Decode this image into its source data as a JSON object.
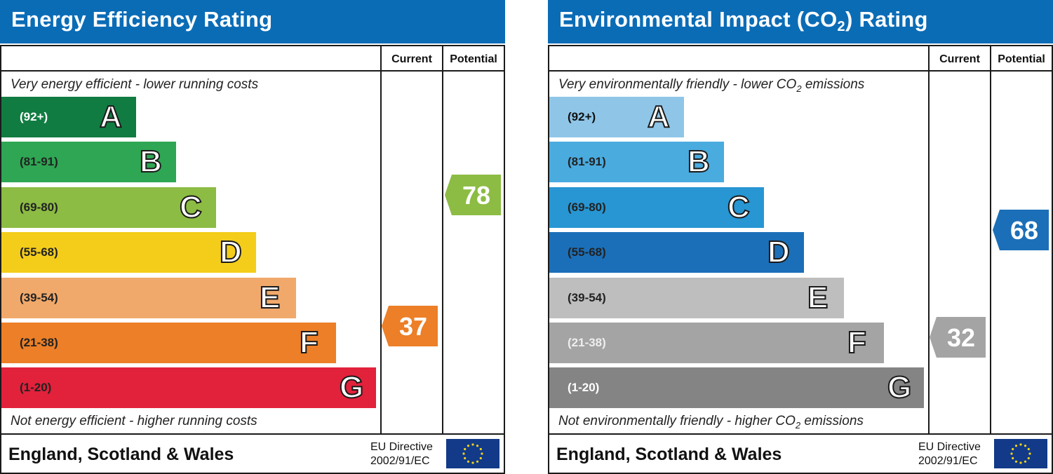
{
  "colors": {
    "header_blue": "#0b6cb6",
    "energy_bands": [
      "#117c42",
      "#2ea653",
      "#8cbc43",
      "#f4cd1b",
      "#f1a96b",
      "#ec7f27",
      "#e2213b"
    ],
    "co2_bands": [
      "#8fc6e8",
      "#4aabdf",
      "#2796d3",
      "#1b6fb8",
      "#bebebe",
      "#a4a4a4",
      "#848484"
    ],
    "energy_current": "#ec7f27",
    "energy_potential": "#8cbc43",
    "co2_current": "#a4a4a4",
    "co2_potential": "#1b6fb8"
  },
  "columns": {
    "current": "Current",
    "potential": "Potential"
  },
  "footer": {
    "country": "England, Scotland & Wales",
    "eu_line1": "EU Directive",
    "eu_line2": "2002/91/EC"
  },
  "chart_data": [
    {
      "type": "bar",
      "title": "Energy Efficiency Rating",
      "top_caption": "Very energy efficient - lower running costs",
      "bottom_caption": "Not energy efficient - higher running costs",
      "bands": [
        {
          "letter": "A",
          "range": "(92+)"
        },
        {
          "letter": "B",
          "range": "(81-91)"
        },
        {
          "letter": "C",
          "range": "(69-80)"
        },
        {
          "letter": "D",
          "range": "(55-68)"
        },
        {
          "letter": "E",
          "range": "(39-54)"
        },
        {
          "letter": "F",
          "range": "(21-38)"
        },
        {
          "letter": "G",
          "range": "(1-20)"
        }
      ],
      "current": {
        "value": 37,
        "band": "F"
      },
      "potential": {
        "value": 78,
        "band": "C"
      }
    },
    {
      "type": "bar",
      "title_main": "Environmental Impact (CO",
      "title_sub": "2",
      "title_end": ") Rating",
      "top_caption_main": "Very environmentally friendly - lower CO",
      "top_caption_sub": "2",
      "top_caption_end": " emissions",
      "bottom_caption_main": "Not environmentally friendly - higher CO",
      "bottom_caption_sub": "2",
      "bottom_caption_end": " emissions",
      "bands": [
        {
          "letter": "A",
          "range": "(92+)"
        },
        {
          "letter": "B",
          "range": "(81-91)"
        },
        {
          "letter": "C",
          "range": "(69-80)"
        },
        {
          "letter": "D",
          "range": "(55-68)"
        },
        {
          "letter": "E",
          "range": "(39-54)"
        },
        {
          "letter": "F",
          "range": "(21-38)"
        },
        {
          "letter": "G",
          "range": "(1-20)"
        }
      ],
      "current": {
        "value": 32,
        "band": "F"
      },
      "potential": {
        "value": 68,
        "band": "D"
      }
    }
  ]
}
